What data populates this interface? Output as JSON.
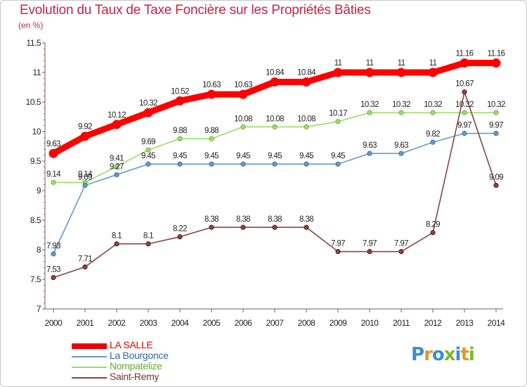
{
  "title": "Evolution du Taux de Taxe Foncière sur les Propriétés Bâties",
  "unit_label": "(en %)",
  "logo": {
    "letters": [
      "P",
      "r",
      "o",
      "x",
      "i",
      "t",
      "i"
    ],
    "colors": [
      "#3a8fd0",
      "#e8962a",
      "#3a8fd0",
      "#7ab830",
      "#3a8fd0",
      "#e8962a",
      "#7ab830"
    ]
  },
  "chart_data": {
    "type": "line",
    "x": [
      "2000",
      "2001",
      "2002",
      "2003",
      "2004",
      "2005",
      "2006",
      "2007",
      "2008",
      "2009",
      "2010",
      "2011",
      "2012",
      "2013",
      "2014"
    ],
    "ylim": [
      7,
      11.5
    ],
    "yticks": [
      "7",
      "7.5",
      "8",
      "8.5",
      "9",
      "9.5",
      "10",
      "10.5",
      "11",
      "11.5"
    ],
    "series": [
      {
        "name": "Nompatelize",
        "color": "#99dd66",
        "stroke": "#66aa33",
        "values": [
          9.14,
          9.14,
          9.41,
          9.69,
          9.88,
          9.88,
          10.08,
          10.08,
          10.08,
          10.17,
          10.32,
          10.32,
          10.32,
          10.32,
          10.32
        ],
        "labels": [
          "9.14",
          "9.14",
          "9.41",
          "9.69",
          "9.88",
          "9.88",
          "10.08",
          "10.08",
          "10.08",
          "10.17",
          "10.32",
          "10.32",
          "10.32",
          "10.32",
          "10.32"
        ]
      },
      {
        "name": "La Bourgonce",
        "color": "#6699cc",
        "stroke": "#336699",
        "values": [
          7.93,
          9.09,
          9.27,
          9.45,
          9.45,
          9.45,
          9.45,
          9.45,
          9.45,
          9.45,
          9.63,
          9.63,
          9.82,
          9.97,
          9.97
        ],
        "labels": [
          "7.93",
          "9.09",
          "9.27",
          "9.45",
          "9.45",
          "9.45",
          "9.45",
          "9.45",
          "9.45",
          "9.45",
          "9.63",
          "9.63",
          "9.82",
          "9.97",
          "9.97"
        ]
      },
      {
        "name": "Saint-Remy",
        "color": "#884444",
        "stroke": "#551111",
        "values": [
          7.53,
          7.71,
          8.1,
          8.1,
          8.22,
          8.38,
          8.38,
          8.38,
          8.38,
          7.97,
          7.97,
          7.97,
          8.29,
          10.67,
          9.09
        ],
        "labels": [
          "7.53",
          "7.71",
          "8.1",
          "8.1",
          "8.22",
          "8.38",
          "8.38",
          "8.38",
          "8.38",
          "7.97",
          "7.97",
          "7.97",
          "8.29",
          "10.67",
          "9.09"
        ]
      },
      {
        "name": "LA SALLE",
        "color": "#ff0000",
        "stroke": "#ee0000",
        "values": [
          9.63,
          9.92,
          10.12,
          10.32,
          10.52,
          10.63,
          10.63,
          10.84,
          10.84,
          11,
          11,
          11,
          11,
          11.16,
          11.16
        ],
        "labels": [
          "9.63",
          "9.92",
          "10.12",
          "10.32",
          "10.52",
          "10.63",
          "10.63",
          "10.84",
          "10.84",
          "11",
          "11",
          "11",
          "11",
          "11.16",
          "11.16"
        ]
      }
    ],
    "legend": [
      "LA SALLE",
      "La Bourgonce",
      "Nompatelize",
      "Saint-Remy"
    ]
  }
}
